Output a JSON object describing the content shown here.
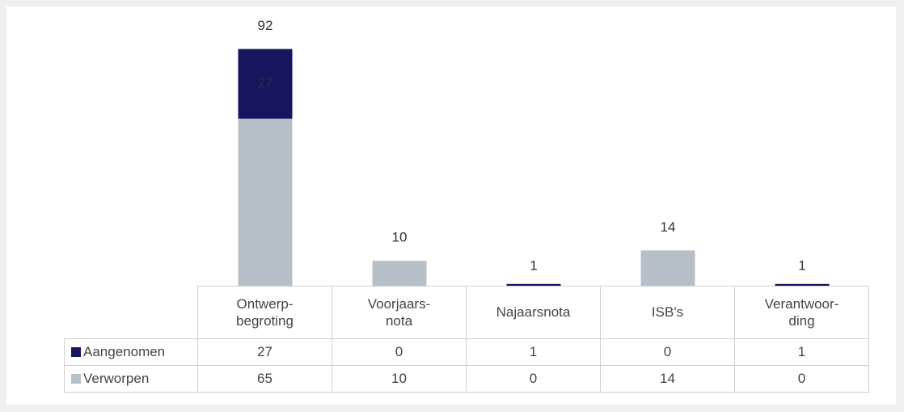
{
  "chart_data": {
    "type": "stacked_bar",
    "categories": [
      "Ontwerp-\nbegroting",
      "Voorjaars-\nnota",
      "Najaarsnota",
      "ISB's",
      "Verantwoor-\nding"
    ],
    "series": [
      {
        "name": "Aangenomen",
        "color": "#15165e",
        "values": [
          27,
          0,
          1,
          0,
          1
        ]
      },
      {
        "name": "Verworpen",
        "color": "#b7c0c8",
        "values": [
          65,
          10,
          0,
          14,
          0
        ]
      }
    ],
    "total_labels": [
      92,
      10,
      1,
      14,
      1
    ],
    "ylim": [
      0,
      100
    ],
    "data_table": true
  }
}
